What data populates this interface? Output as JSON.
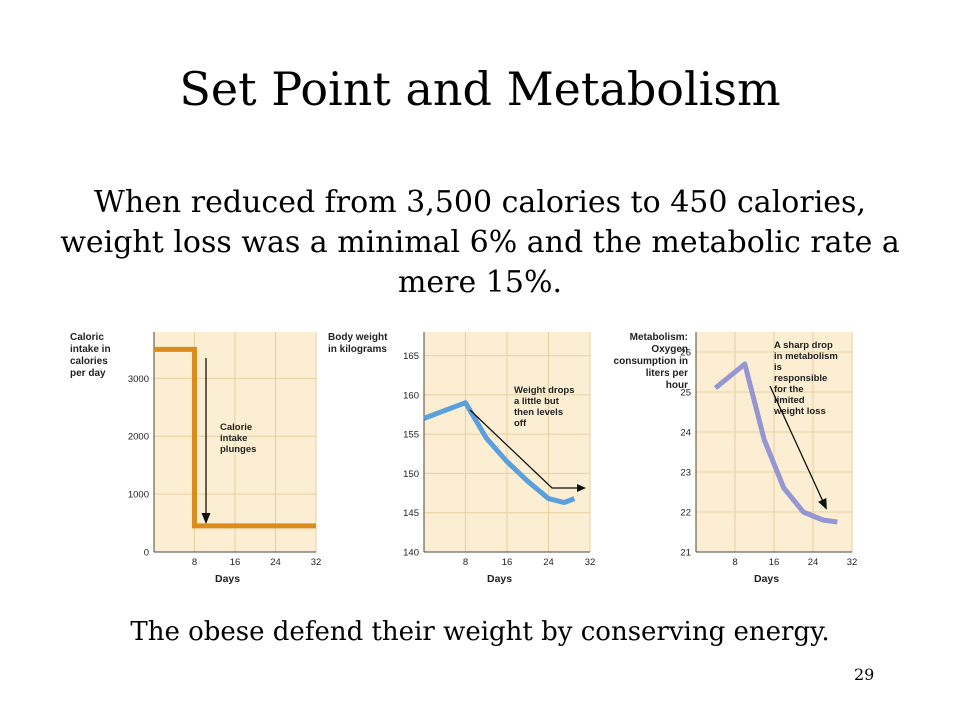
{
  "slide": {
    "title": "Set Point and Metabolism",
    "subtitle": "When reduced from 3,500 calories to 450 calories, weight loss was a minimal 6% and the metabolic rate a mere 15%.",
    "caption": "The obese defend their weight by conserving energy.",
    "page_number": "29"
  },
  "chart_data": [
    {
      "type": "line",
      "ylabel": "Caloric intake in calories per day",
      "xlabel": "Days",
      "xticks": [
        8,
        16,
        24,
        32
      ],
      "yticks": [
        0,
        1000,
        2000,
        3000
      ],
      "xlim": [
        0,
        32
      ],
      "ylim": [
        0,
        3800
      ],
      "grid": true,
      "annotation": "Calorie intake plunges",
      "series": [
        {
          "color": "#dc8c1e",
          "x": [
            0,
            8,
            8,
            32
          ],
          "values": [
            3500,
            3500,
            450,
            450
          ]
        }
      ]
    },
    {
      "type": "line",
      "ylabel": "Body weight in kilograms",
      "xlabel": "Days",
      "xticks": [
        8,
        16,
        24,
        32
      ],
      "yticks": [
        140,
        145,
        150,
        155,
        160,
        165
      ],
      "xlim": [
        0,
        32
      ],
      "ylim": [
        140,
        168
      ],
      "grid": true,
      "annotation": "Weight drops a little but then levels off",
      "series": [
        {
          "color": "#5aa0dc",
          "x": [
            0,
            8,
            12,
            16,
            20,
            24,
            27,
            29
          ],
          "values": [
            157,
            159,
            154.5,
            151.5,
            149,
            146.8,
            146.3,
            146.8
          ]
        }
      ]
    },
    {
      "type": "line",
      "ylabel": "Metabolism: Oxygen consumption in liters per hour",
      "xlabel": "Days",
      "xticks": [
        8,
        16,
        24,
        32
      ],
      "yticks": [
        21,
        22,
        23,
        24,
        25,
        26
      ],
      "xlim": [
        0,
        32
      ],
      "ylim": [
        21,
        26.5
      ],
      "grid": true,
      "annotation": "A sharp drop in metabolism is responsible for the limited weight loss",
      "series": [
        {
          "color": "#9696d2",
          "x": [
            4,
            10,
            14,
            18,
            22,
            26,
            29
          ],
          "values": [
            25.1,
            25.7,
            23.8,
            22.6,
            22.0,
            21.8,
            21.75
          ]
        }
      ]
    }
  ]
}
